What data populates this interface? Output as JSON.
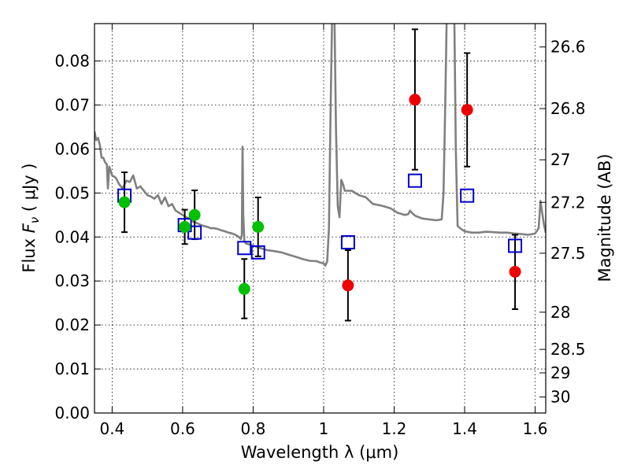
{
  "chart_data": {
    "type": "scatter",
    "xlabel": "Wavelength  λ (μm)",
    "ylabel": "Flux  F_ν  ( μJy )",
    "ylabel_parts": {
      "pre": "Flux  ",
      "sym": "F",
      "sub": "ν",
      "post": "  ( μJy )"
    },
    "ylabel_right": "Magnitude (AB)",
    "xlim": [
      0.35,
      1.63
    ],
    "ylim": [
      0.0,
      0.0885
    ],
    "grid": true,
    "x_ticks": [
      {
        "v": 0.4,
        "label": "0.4"
      },
      {
        "v": 0.6,
        "label": "0.6"
      },
      {
        "v": 0.8,
        "label": "0.8"
      },
      {
        "v": 1.0,
        "label": "1"
      },
      {
        "v": 1.2,
        "label": "1.2"
      },
      {
        "v": 1.4,
        "label": "1.4"
      },
      {
        "v": 1.6,
        "label": "1.6"
      }
    ],
    "y_ticks": [
      {
        "v": 0.0,
        "label": "0.00"
      },
      {
        "v": 0.01,
        "label": "0.01"
      },
      {
        "v": 0.02,
        "label": "0.02"
      },
      {
        "v": 0.03,
        "label": "0.03"
      },
      {
        "v": 0.04,
        "label": "0.04"
      },
      {
        "v": 0.05,
        "label": "0.05"
      },
      {
        "v": 0.06,
        "label": "0.06"
      },
      {
        "v": 0.07,
        "label": "0.07"
      },
      {
        "v": 0.08,
        "label": "0.08"
      }
    ],
    "right_ticks": [
      {
        "mag": 26.6,
        "label": "26.6"
      },
      {
        "mag": 26.8,
        "label": "26.8"
      },
      {
        "mag": 27.0,
        "label": "27"
      },
      {
        "mag": 27.2,
        "label": "27.2"
      },
      {
        "mag": 27.5,
        "label": "27.5"
      },
      {
        "mag": 28.0,
        "label": "28"
      },
      {
        "mag": 28.5,
        "label": "28.5"
      },
      {
        "mag": 29.0,
        "label": "29"
      },
      {
        "mag": 30.0,
        "label": "30"
      }
    ],
    "colors": {
      "model_line": "#808080",
      "optical_points": "#00c000",
      "nir_points": "#ee0000",
      "model_boxes": "#0000cc",
      "error_bars": "#000000"
    },
    "series": [
      {
        "kind": "points_optical",
        "points": [
          {
            "x": 0.435,
            "y": 0.0479,
            "lo": 0.0411,
            "hi": 0.0547
          },
          {
            "x": 0.606,
            "y": 0.0423,
            "lo": 0.0384,
            "hi": 0.0462
          },
          {
            "x": 0.634,
            "y": 0.045,
            "lo": 0.0395,
            "hi": 0.0506
          },
          {
            "x": 0.775,
            "y": 0.0282,
            "lo": 0.0215,
            "hi": 0.035
          },
          {
            "x": 0.814,
            "y": 0.0423,
            "lo": 0.0356,
            "hi": 0.049
          }
        ]
      },
      {
        "kind": "points_nir",
        "points": [
          {
            "x": 1.069,
            "y": 0.029,
            "lo": 0.021,
            "hi": 0.037
          },
          {
            "x": 1.259,
            "y": 0.0712,
            "lo": 0.0553,
            "hi": 0.0872
          },
          {
            "x": 1.407,
            "y": 0.0689,
            "lo": 0.056,
            "hi": 0.0818
          },
          {
            "x": 1.543,
            "y": 0.0321,
            "lo": 0.0236,
            "hi": 0.0405
          }
        ]
      },
      {
        "kind": "model_boxes",
        "points": [
          {
            "x": 0.435,
            "y": 0.0494
          },
          {
            "x": 0.606,
            "y": 0.0427
          },
          {
            "x": 0.634,
            "y": 0.041
          },
          {
            "x": 0.775,
            "y": 0.0375
          },
          {
            "x": 0.814,
            "y": 0.0365
          },
          {
            "x": 1.069,
            "y": 0.0388
          },
          {
            "x": 1.259,
            "y": 0.0528
          },
          {
            "x": 1.407,
            "y": 0.0494
          },
          {
            "x": 1.543,
            "y": 0.038
          }
        ]
      },
      {
        "kind": "model_spectrum",
        "points": [
          [
            0.35,
            0.064
          ],
          [
            0.355,
            0.062
          ],
          [
            0.36,
            0.0625
          ],
          [
            0.365,
            0.061
          ],
          [
            0.37,
            0.058
          ],
          [
            0.375,
            0.058
          ],
          [
            0.38,
            0.057
          ],
          [
            0.385,
            0.0565
          ],
          [
            0.388,
            0.051
          ],
          [
            0.392,
            0.056
          ],
          [
            0.4,
            0.054
          ],
          [
            0.41,
            0.0535
          ],
          [
            0.42,
            0.052
          ],
          [
            0.43,
            0.051
          ],
          [
            0.44,
            0.0528
          ],
          [
            0.45,
            0.0525
          ],
          [
            0.46,
            0.054
          ],
          [
            0.47,
            0.051
          ],
          [
            0.48,
            0.0515
          ],
          [
            0.49,
            0.0505
          ],
          [
            0.5,
            0.0495
          ],
          [
            0.51,
            0.0492
          ],
          [
            0.52,
            0.0487
          ],
          [
            0.53,
            0.0495
          ],
          [
            0.54,
            0.0475
          ],
          [
            0.55,
            0.049
          ],
          [
            0.56,
            0.047
          ],
          [
            0.57,
            0.0475
          ],
          [
            0.58,
            0.046
          ],
          [
            0.59,
            0.0455
          ],
          [
            0.6,
            0.045
          ],
          [
            0.61,
            0.0445
          ],
          [
            0.62,
            0.0442
          ],
          [
            0.63,
            0.0435
          ],
          [
            0.64,
            0.0432
          ],
          [
            0.65,
            0.0428
          ],
          [
            0.66,
            0.0425
          ],
          [
            0.67,
            0.0423
          ],
          [
            0.68,
            0.042
          ],
          [
            0.69,
            0.042
          ],
          [
            0.7,
            0.0418
          ],
          [
            0.71,
            0.0415
          ],
          [
            0.72,
            0.0413
          ],
          [
            0.73,
            0.041
          ],
          [
            0.74,
            0.0408
          ],
          [
            0.75,
            0.0405
          ],
          [
            0.76,
            0.04
          ],
          [
            0.765,
            0.0395
          ],
          [
            0.768,
            0.0405
          ],
          [
            0.77,
            0.0605
          ],
          [
            0.772,
            0.045
          ],
          [
            0.775,
            0.039
          ],
          [
            0.78,
            0.0385
          ],
          [
            0.79,
            0.0383
          ],
          [
            0.8,
            0.038
          ],
          [
            0.81,
            0.0378
          ],
          [
            0.82,
            0.0375
          ],
          [
            0.84,
            0.037
          ],
          [
            0.86,
            0.0368
          ],
          [
            0.88,
            0.0365
          ],
          [
            0.9,
            0.036
          ],
          [
            0.92,
            0.0355
          ],
          [
            0.94,
            0.035
          ],
          [
            0.96,
            0.0346
          ],
          [
            0.98,
            0.0345
          ],
          [
            0.99,
            0.0342
          ],
          [
            1.0,
            0.034
          ],
          [
            1.005,
            0.0335
          ],
          [
            1.01,
            0.0345
          ],
          [
            1.015,
            0.042
          ],
          [
            1.02,
            0.07
          ],
          [
            1.025,
            0.095
          ],
          [
            1.03,
            0.095
          ],
          [
            1.035,
            0.065
          ],
          [
            1.04,
            0.047
          ],
          [
            1.045,
            0.0445
          ],
          [
            1.05,
            0.053
          ],
          [
            1.055,
            0.052
          ],
          [
            1.06,
            0.0505
          ],
          [
            1.08,
            0.0505
          ],
          [
            1.1,
            0.0495
          ],
          [
            1.12,
            0.049
          ],
          [
            1.14,
            0.0475
          ],
          [
            1.16,
            0.0472
          ],
          [
            1.17,
            0.047
          ],
          [
            1.19,
            0.0465
          ],
          [
            1.2,
            0.046
          ],
          [
            1.21,
            0.0455
          ],
          [
            1.23,
            0.045
          ],
          [
            1.24,
            0.0452
          ],
          [
            1.245,
            0.046
          ],
          [
            1.25,
            0.0455
          ],
          [
            1.26,
            0.0448
          ],
          [
            1.28,
            0.0442
          ],
          [
            1.3,
            0.044
          ],
          [
            1.32,
            0.0438
          ],
          [
            1.335,
            0.044
          ],
          [
            1.34,
            0.05
          ],
          [
            1.345,
            0.07
          ],
          [
            1.35,
            0.095
          ],
          [
            1.37,
            0.095
          ],
          [
            1.375,
            0.06
          ],
          [
            1.38,
            0.0425
          ],
          [
            1.39,
            0.0418
          ],
          [
            1.4,
            0.0413
          ],
          [
            1.42,
            0.041
          ],
          [
            1.44,
            0.041
          ],
          [
            1.46,
            0.0412
          ],
          [
            1.48,
            0.0411
          ],
          [
            1.5,
            0.041
          ],
          [
            1.52,
            0.041
          ],
          [
            1.54,
            0.0408
          ],
          [
            1.56,
            0.0407
          ],
          [
            1.58,
            0.0405
          ],
          [
            1.6,
            0.0408
          ],
          [
            1.61,
            0.042
          ],
          [
            1.615,
            0.0482
          ],
          [
            1.62,
            0.0455
          ],
          [
            1.625,
            0.0428
          ],
          [
            1.63,
            0.041
          ]
        ]
      }
    ]
  }
}
